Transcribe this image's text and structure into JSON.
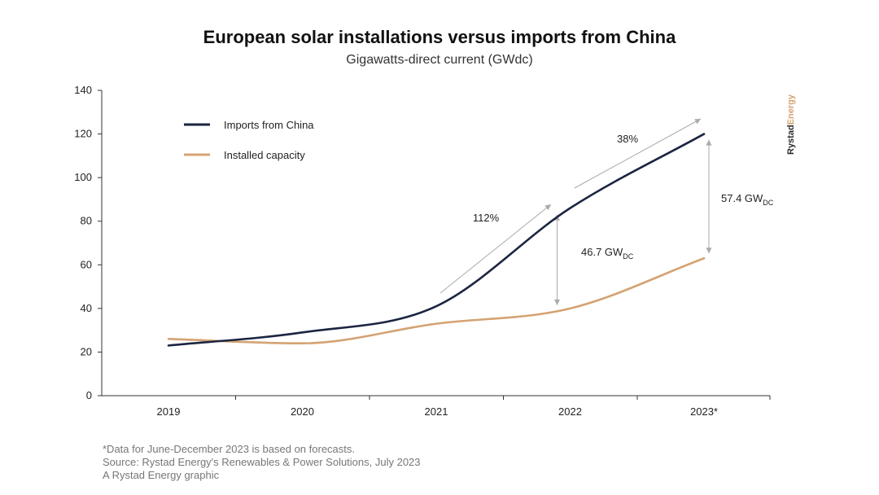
{
  "chart_data": {
    "type": "line",
    "title": "European solar installations versus imports from China",
    "subtitle": "Gigawatts-direct current (GWdc)",
    "categories": [
      "2019",
      "2020",
      "2021",
      "2022",
      "2023*"
    ],
    "ylim": [
      0,
      140
    ],
    "yticks": [
      0,
      20,
      40,
      60,
      80,
      100,
      120,
      140
    ],
    "grid": false,
    "legend_position": "top-left",
    "series": [
      {
        "name": "Imports from China",
        "color": "#1c2541",
        "values": [
          23,
          29,
          41,
          86,
          120
        ]
      },
      {
        "name": "Installed capacity",
        "color": "#d4a373",
        "values": [
          26,
          24,
          33,
          40,
          63
        ]
      }
    ],
    "annotations": {
      "growth_2021_2022": "112%",
      "growth_2022_2023": "38%",
      "gap_2022": {
        "value": "46.7 GW",
        "subscript": "DC"
      },
      "gap_2023": {
        "value": "57.4 GW",
        "subscript": "DC"
      }
    }
  },
  "footnotes": [
    "*Data for June-December 2023 is based on forecasts.",
    "Source: Rystad Energy's Renewables & Power Solutions, July 2023",
    "A Rystad Energy graphic"
  ],
  "brand": {
    "part1": "Rystad",
    "part2": "Energy",
    "color1": "#2b2b2b",
    "color2": "#d4a373"
  },
  "colors": {
    "axis": "#333333",
    "arrow": "#aaaaaa"
  }
}
